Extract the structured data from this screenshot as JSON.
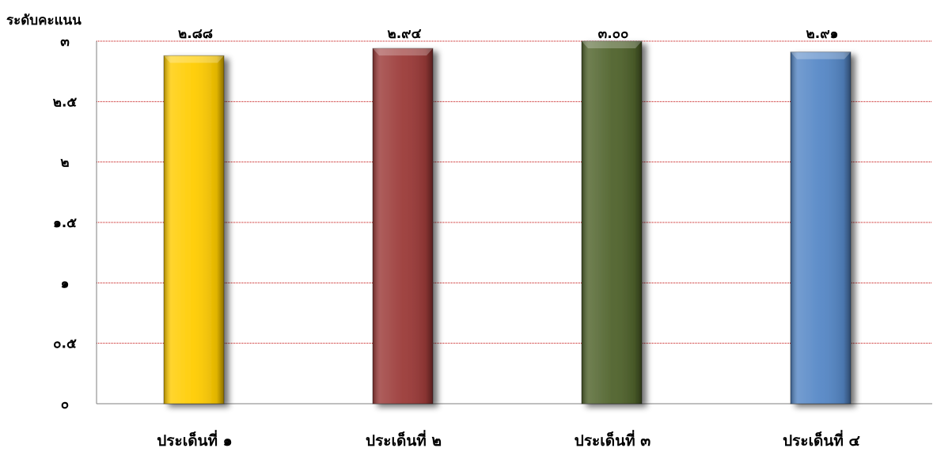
{
  "chart_data": {
    "type": "bar",
    "ylabel": "ระดับคะแนน",
    "categories": [
      "ประเด็นที่ ๑",
      "ประเด็นที่ ๒",
      "ประเด็นที่ ๓",
      "ประเด็นที่ ๔"
    ],
    "values": [
      2.88,
      2.94,
      3.0,
      2.91
    ],
    "data_labels": [
      "๒.๘๘",
      "๒.๙๔",
      "๓.๐๐",
      "๒.๙๑"
    ],
    "yticks": [
      0,
      0.5,
      1,
      1.5,
      2,
      2.5,
      3
    ],
    "ytick_labels": [
      "๐",
      "๐.๕",
      "๑",
      "๑.๕",
      "๒",
      "๒.๕",
      "๓"
    ],
    "ylim": [
      0,
      3
    ],
    "grid": true,
    "legend": false,
    "colors": [
      "#FFCC00",
      "#9B3A38",
      "#50632C",
      "#5587C6"
    ],
    "grid_color": "#C00000"
  }
}
